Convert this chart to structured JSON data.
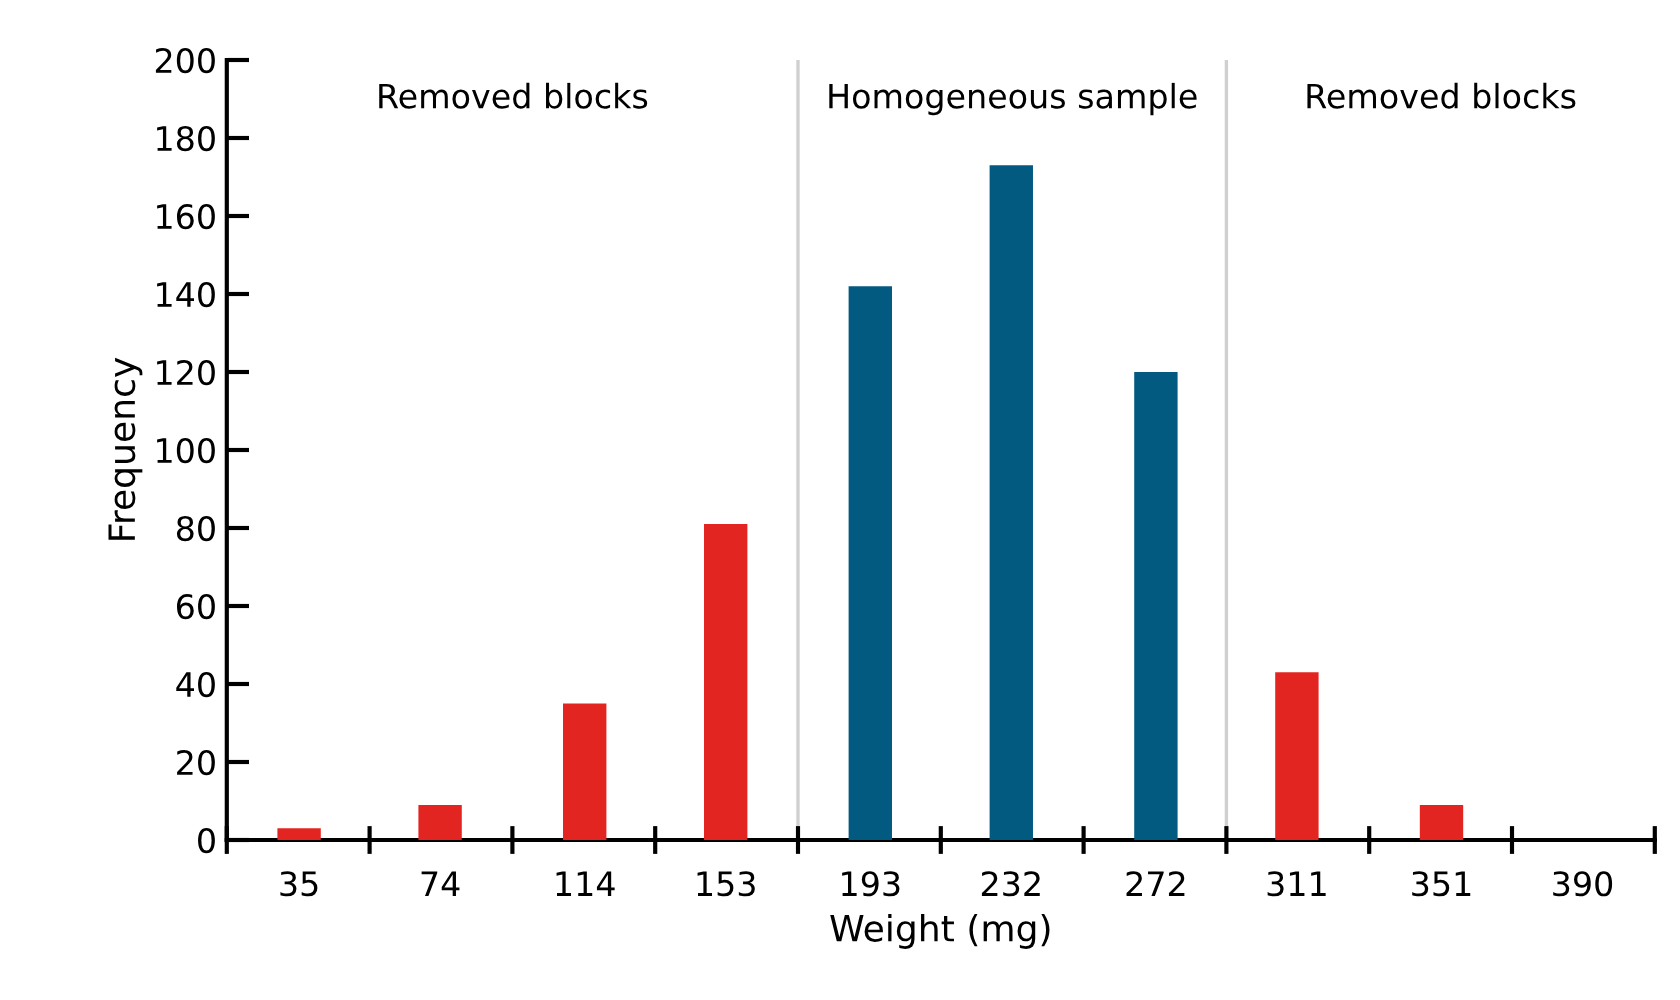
{
  "chart_data": {
    "type": "bar",
    "xlabel": "Weight (mg)",
    "ylabel": "Frequency",
    "x": [
      35,
      74,
      114,
      153,
      193,
      232,
      272,
      311,
      351,
      390
    ],
    "values": [
      3,
      9,
      35,
      81,
      142,
      173,
      120,
      43,
      9,
      0
    ],
    "colors": [
      "#e32522",
      "#e32522",
      "#e32522",
      "#e32522",
      "#035a80",
      "#035a80",
      "#035a80",
      "#e32522",
      "#e32522",
      "#e32522"
    ],
    "xlim": [
      15,
      410
    ],
    "xticks": [
      {
        "value": 15,
        "label": null
      },
      35,
      {
        "value": 54.5,
        "label": null
      },
      74,
      {
        "value": 94,
        "label": null
      },
      114,
      {
        "value": 133.5,
        "label": null
      },
      153,
      {
        "value": 173,
        "label": null
      },
      193,
      {
        "value": 212.5,
        "label": null
      },
      232,
      {
        "value": 252,
        "label": null
      },
      272,
      {
        "value": 291.5,
        "label": null
      },
      311,
      {
        "value": 331,
        "label": null
      },
      351,
      {
        "value": 370.5,
        "label": null
      },
      390,
      {
        "value": 410,
        "label": null
      }
    ],
    "ylim": [
      0,
      200
    ],
    "yticks": [
      0,
      20,
      40,
      60,
      80,
      100,
      120,
      140,
      160,
      180,
      200
    ],
    "grid": false,
    "ref_lines": [
      {
        "axis": "x",
        "value": 173,
        "color": "#d0d0d0"
      },
      {
        "axis": "x",
        "value": 291.5,
        "color": "#d0d0d0"
      }
    ],
    "annotations": [
      "Removed blocks",
      "Homogeneous sample",
      "Removed blocks"
    ]
  }
}
